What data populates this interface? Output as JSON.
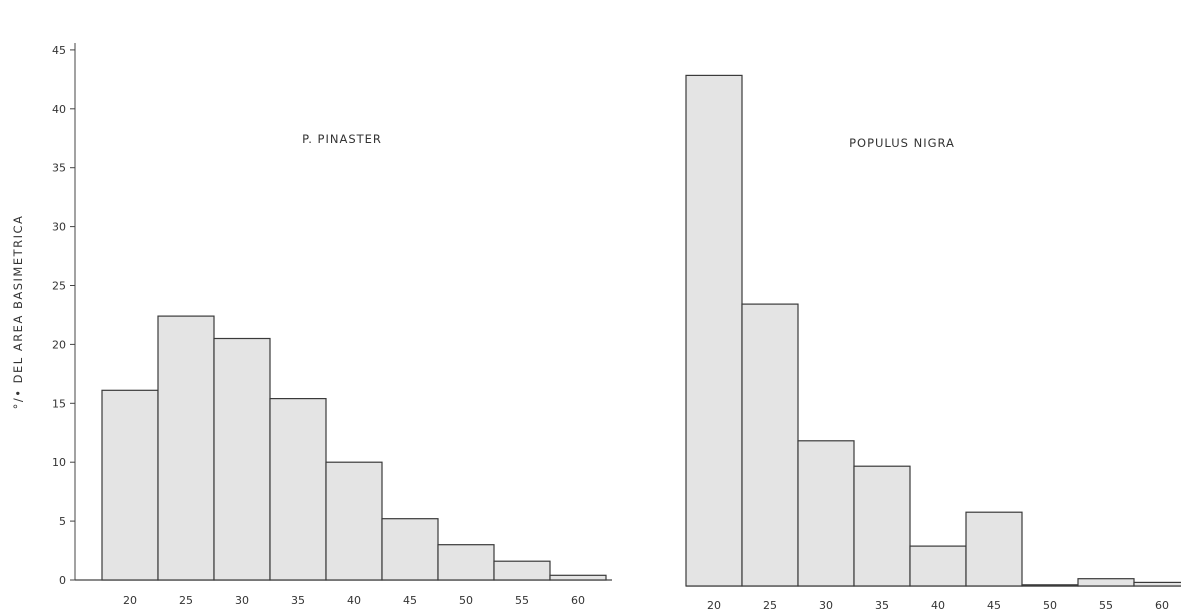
{
  "chart_data": [
    {
      "type": "bar",
      "title": "P. PINASTER",
      "ylabel": "°/• DEL AREA BASIMETRICA",
      "xlabel": "",
      "categories": [
        "20",
        "25",
        "30",
        "35",
        "40",
        "45",
        "50",
        "55",
        "60"
      ],
      "values": [
        16.1,
        22.4,
        20.5,
        15.4,
        10.0,
        5.2,
        3.0,
        1.6,
        0.4
      ],
      "ylim": [
        0,
        45
      ],
      "yticks": [
        "0",
        "5",
        "10",
        "15",
        "20",
        "25",
        "30",
        "35",
        "40",
        "45"
      ],
      "grid": false,
      "bar_color": "#e4e4e4"
    },
    {
      "type": "bar",
      "title": "POPULUS NIGRA",
      "xlabel": "",
      "categories": [
        "20",
        "25",
        "30",
        "35",
        "40",
        "45",
        "50",
        "55",
        "60"
      ],
      "values": [
        42.2,
        23.3,
        12.0,
        9.9,
        3.3,
        6.1,
        0.1,
        0.6,
        0.3
      ],
      "ylim": [
        0,
        45
      ],
      "grid": false,
      "bar_color": "#e4e4e4"
    }
  ]
}
